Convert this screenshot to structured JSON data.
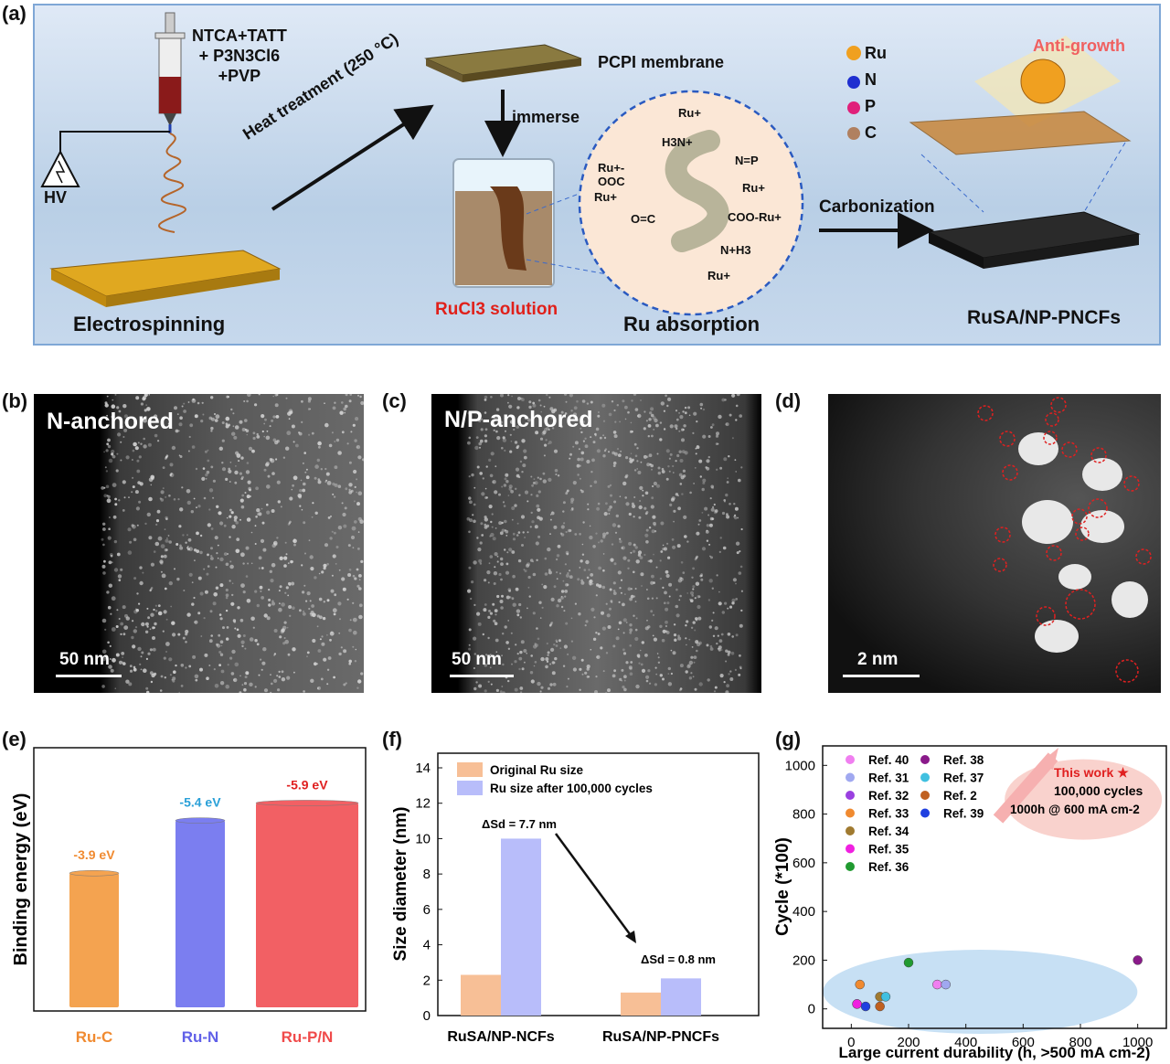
{
  "panel_labels": {
    "a": "(a)",
    "b": "(b)",
    "c": "(c)",
    "d": "(d)",
    "e": "(e)",
    "f": "(f)",
    "g": "(g)"
  },
  "schematic": {
    "precursors": [
      "NTCA+TATT",
      "+ P3N3Cl6",
      "+PVP"
    ],
    "hv": "HV",
    "electrospinning": "Electrospinning",
    "heat_treatment": "Heat treatment (250 °C)",
    "membrane": "PCPI membrane",
    "immerse": "immerse",
    "solution": "RuCl3 solution",
    "absorption": "Ru absorption",
    "carbonization": "Carbonization",
    "anti_growth": "Anti-growth",
    "product": "RuSA/NP-PNCFs",
    "legend": [
      "Ru",
      "N",
      "P",
      "C"
    ],
    "legend_colors": [
      "#f0a020",
      "#1f2fd0",
      "#e0207a",
      "#b08060"
    ],
    "molecule_labels": [
      "Ru+",
      "H3N+",
      "N=P",
      "Ru+",
      "Ru+-OOC",
      "Ru+",
      "O=C",
      "COO-Ru+",
      "N+H3",
      "Ru+"
    ]
  },
  "micrographs": {
    "b": {
      "label": "N-anchored",
      "scale": "50 nm"
    },
    "c": {
      "label": "N/P-anchored",
      "scale": "50 nm"
    },
    "d": {
      "label": "",
      "scale": "2 nm"
    }
  },
  "chart_data": [
    {
      "panel": "e",
      "type": "bar",
      "categories": [
        "Ru-C",
        "Ru-N",
        "Ru-P/N"
      ],
      "values": [
        -3.9,
        -5.4,
        -5.9
      ],
      "value_labels": [
        "-3.9 eV",
        "-5.4 eV",
        "-5.9 eV"
      ],
      "colors": [
        "#f4a350",
        "#7b7ef0",
        "#f26064"
      ],
      "ylabel": "Binding energy (eV)",
      "xlabel": ""
    },
    {
      "panel": "f",
      "type": "bar",
      "categories": [
        "RuSA/NP-NCFs",
        "RuSA/NP-PNCFs"
      ],
      "series": [
        {
          "name": "Original Ru size",
          "values": [
            2.3,
            1.3
          ],
          "color": "#f7bf96"
        },
        {
          "name": "Ru size after 100,000 cycles",
          "values": [
            10.0,
            2.1
          ],
          "color": "#b8bdfa"
        }
      ],
      "annotations": [
        "ΔSd = 7.7 nm",
        "ΔSd = 0.8 nm"
      ],
      "ylabel": "Size diameter (nm)",
      "xlabel": "",
      "ylim": [
        0,
        14
      ],
      "yticks": [
        0,
        2,
        4,
        6,
        8,
        10,
        12,
        14
      ]
    },
    {
      "panel": "g",
      "type": "scatter",
      "xlabel": "Large current durability (h, >500 mA cm-2)",
      "ylabel": "Cycle (*100)",
      "xlim": [
        -100,
        1100
      ],
      "ylim": [
        -80,
        1080
      ],
      "xticks": [
        0,
        200,
        400,
        600,
        800,
        1000
      ],
      "yticks": [
        0,
        200,
        400,
        600,
        800,
        1000
      ],
      "series": [
        {
          "name": "Ref. 40",
          "color": "#f07ff0",
          "points": [
            [
              300,
              100
            ]
          ]
        },
        {
          "name": "Ref. 31",
          "color": "#a0a8f0",
          "points": [
            [
              330,
              100
            ]
          ]
        },
        {
          "name": "Ref. 32",
          "color": "#9a40e0",
          "points": [
            [
              20,
              20
            ]
          ]
        },
        {
          "name": "Ref. 33",
          "color": "#f08a30",
          "points": [
            [
              30,
              100
            ]
          ]
        },
        {
          "name": "Ref. 34",
          "color": "#a07a30",
          "points": [
            [
              100,
              50
            ]
          ]
        },
        {
          "name": "Ref. 35",
          "color": "#f020e0",
          "points": [
            [
              20,
              20
            ]
          ]
        },
        {
          "name": "Ref. 36",
          "color": "#209a30",
          "points": [
            [
              200,
              190
            ]
          ]
        },
        {
          "name": "Ref. 38",
          "color": "#8a1a8a",
          "points": [
            [
              1000,
              200
            ]
          ]
        },
        {
          "name": "Ref. 37",
          "color": "#40c0e0",
          "points": [
            [
              120,
              50
            ]
          ]
        },
        {
          "name": "Ref. 2",
          "color": "#c06020",
          "points": [
            [
              100,
              10
            ]
          ]
        },
        {
          "name": "Ref. 39",
          "color": "#2040e0",
          "points": [
            [
              50,
              10
            ]
          ]
        }
      ],
      "this_work": [
        "This work ★",
        "100,000 cycles",
        "1000h @ 600 mA cm-2"
      ]
    }
  ]
}
